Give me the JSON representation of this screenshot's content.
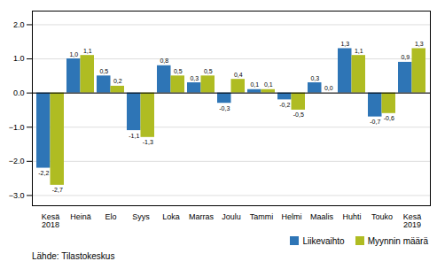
{
  "chart_data": {
    "type": "bar",
    "categories": [
      "Kesä\n2018",
      "Heinä",
      "Elo",
      "Syys",
      "Loka",
      "Marras",
      "Joulu",
      "Tammi",
      "Helmi",
      "Maalis",
      "Huhti",
      "Touko",
      "Kesä\n2019"
    ],
    "series": [
      {
        "name": "Liikevaihto",
        "color": "#2E75B6",
        "values": [
          -2.2,
          1.0,
          0.5,
          -1.1,
          0.8,
          0.3,
          -0.3,
          0.1,
          -0.2,
          0.3,
          1.3,
          -0.7,
          0.9
        ],
        "value_labels": [
          "-2,2",
          "1,0",
          "0,5",
          "-1,1",
          "0,8",
          "0,3",
          "-0,3",
          "0,1",
          "-0,2",
          "0,3",
          "1,3",
          "-0,7",
          "0,9"
        ]
      },
      {
        "name": "Myynnin määrä",
        "color": "#AFBC22",
        "values": [
          -2.7,
          1.1,
          0.2,
          -1.3,
          0.5,
          0.5,
          0.4,
          0.1,
          -0.5,
          0.0,
          1.1,
          -0.6,
          1.3
        ],
        "value_labels": [
          "-2,7",
          "1,1",
          "0,2",
          "-1,3",
          "0,5",
          "0,5",
          "0,4",
          "0,1",
          "-0,5",
          "0,0",
          "1,1",
          "-0,6",
          "1,3"
        ]
      }
    ],
    "ylim": [
      -3.3,
      2.4
    ],
    "yticks": [
      -3,
      -2,
      -1,
      0,
      1,
      2
    ],
    "grid": true,
    "legend": "lower right",
    "data_labels": true,
    "caption": "Lähde: Tilastokeskus"
  }
}
